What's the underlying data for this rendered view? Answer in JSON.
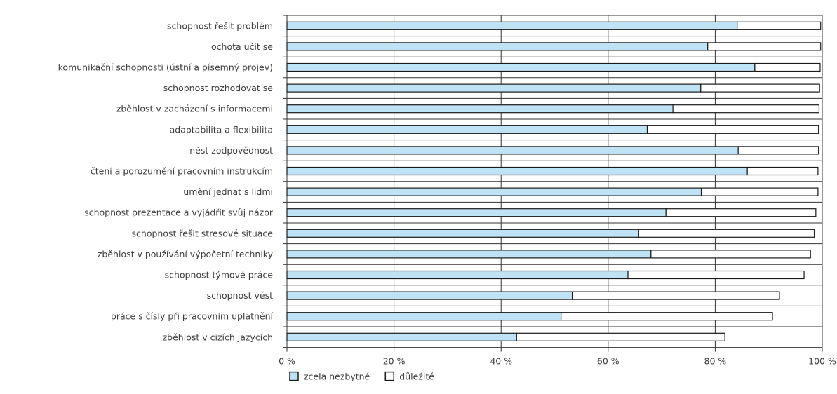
{
  "chart_data": {
    "type": "bar",
    "orientation": "horizontal",
    "stacked": true,
    "categories": [
      "schopnost řešit problém",
      "ochota učit se",
      "komunikační schopnosti (ústní a písemný projev)",
      "schopnost rozhodovat se",
      "zběhlost v zacházení s informacemi",
      "adaptabilita a flexibilita",
      "nést zodpovědnost",
      "čtení a porozumění pracovním instrukcím",
      "umění jednat s lidmi",
      "schopnost prezentace a vyjádřit svůj názor",
      "schopnost řešit stresové situace",
      "zběhlost v používání výpočetní techniky",
      "schopnost týmové práce",
      "schopnost vést",
      "práce s čísly při pracovním uplatnění",
      "zběhlost v cizích jazycích"
    ],
    "series": [
      {
        "name": "zcela nezbytné",
        "color": "#bfe3f4",
        "values": [
          84.1,
          78.6,
          87.4,
          77.3,
          72.1,
          67.3,
          84.3,
          86.0,
          77.4,
          70.8,
          65.7,
          68.0,
          63.7,
          53.4,
          51.2,
          42.9
        ]
      },
      {
        "name": "důležité",
        "color": "#ffffff",
        "values": [
          15.6,
          21.1,
          12.2,
          22.2,
          27.3,
          32.0,
          15.0,
          13.2,
          21.8,
          28.0,
          32.8,
          29.8,
          32.9,
          38.6,
          39.5,
          38.9
        ]
      }
    ],
    "xlim": [
      0,
      100
    ],
    "x_ticks": [
      "0 %",
      "20 %",
      "40 %",
      "60 %",
      "80 %",
      "100 %"
    ],
    "grid": true,
    "legend_position": "bottom-left"
  }
}
